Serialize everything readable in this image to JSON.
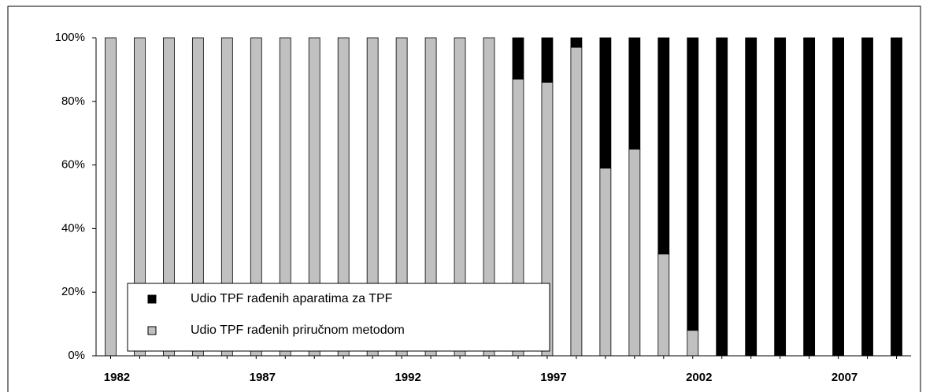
{
  "chart_data": {
    "type": "stacked_bar",
    "categories": [
      "1982",
      null,
      null,
      null,
      null,
      "1987",
      null,
      null,
      null,
      null,
      "1992",
      null,
      null,
      null,
      null,
      "1997",
      null,
      null,
      null,
      null,
      "2002",
      null,
      null,
      null,
      null,
      "2007",
      null,
      null
    ],
    "series": [
      {
        "name": "Udio TPF rađenih priručnom metodom",
        "color": "#c0c0c0",
        "values": [
          100,
          100,
          100,
          100,
          100,
          100,
          100,
          100,
          100,
          100,
          100,
          100,
          100,
          100,
          87,
          86,
          97,
          59,
          65,
          32,
          8,
          0,
          0,
          0,
          0,
          0,
          0,
          0
        ]
      },
      {
        "name": "Udio TPF rađenih aparatima za TPF",
        "color": "#000000",
        "values": [
          0,
          0,
          0,
          0,
          0,
          0,
          0,
          0,
          0,
          0,
          0,
          0,
          0,
          0,
          13,
          14,
          3,
          41,
          35,
          68,
          92,
          100,
          100,
          100,
          100,
          100,
          100,
          100
        ]
      }
    ],
    "ylim": [
      0,
      100
    ],
    "yticks": [
      {
        "value": 0,
        "label": "0%"
      },
      {
        "value": 20,
        "label": "20%"
      },
      {
        "value": 40,
        "label": "40%"
      },
      {
        "value": 60,
        "label": "60%"
      },
      {
        "value": 80,
        "label": "80%"
      },
      {
        "value": 100,
        "label": "100%"
      }
    ],
    "legend": "lower-left"
  }
}
